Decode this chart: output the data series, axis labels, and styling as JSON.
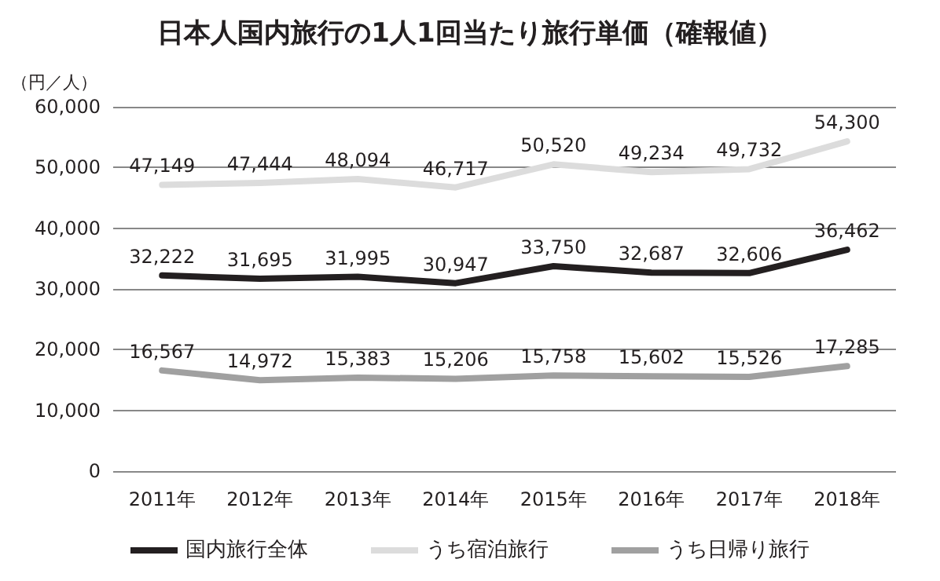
{
  "chart_data": {
    "type": "line",
    "title": "日本人国内旅行の1人1回当たり旅行単価（確報値）",
    "ylabel": "（円／人）",
    "categories": [
      "2011年",
      "2012年",
      "2013年",
      "2014年",
      "2015年",
      "2016年",
      "2017年",
      "2018年"
    ],
    "series": [
      {
        "name": "国内旅行全体",
        "color": "#231f20",
        "values": [
          32222,
          31695,
          31995,
          30947,
          33750,
          32687,
          32606,
          36462
        ],
        "value_labels": [
          "32,222",
          "31,695",
          "31,995",
          "30,947",
          "33,750",
          "32,687",
          "32,606",
          "36,462"
        ]
      },
      {
        "name": "うち宿泊旅行",
        "color": "#dcdcdc",
        "values": [
          47149,
          47444,
          48094,
          46717,
          50520,
          49234,
          49732,
          54300
        ],
        "value_labels": [
          "47,149",
          "47,444",
          "48,094",
          "46,717",
          "50,520",
          "49,234",
          "49,732",
          "54,300"
        ]
      },
      {
        "name": "うち日帰り旅行",
        "color": "#a0a0a0",
        "values": [
          16567,
          14972,
          15383,
          15206,
          15758,
          15602,
          15526,
          17285
        ],
        "value_labels": [
          "16,567",
          "14,972",
          "15,383",
          "15,206",
          "15,758",
          "15,602",
          "15,526",
          "17,285"
        ]
      }
    ],
    "ylim": [
      0,
      60000
    ],
    "yticks": [
      0,
      {
        "value": 10000,
        "label": "10,000"
      },
      {
        "value": 20000,
        "label": "20,000"
      },
      {
        "value": 30000,
        "label": "30,000"
      },
      {
        "value": 40000,
        "label": "40,000"
      },
      {
        "value": 50000,
        "label": "50,000"
      },
      {
        "value": 60000,
        "label": "60,000"
      }
    ],
    "grid": "y",
    "legend": "bottom",
    "marker": "none",
    "line_style": "solid"
  }
}
